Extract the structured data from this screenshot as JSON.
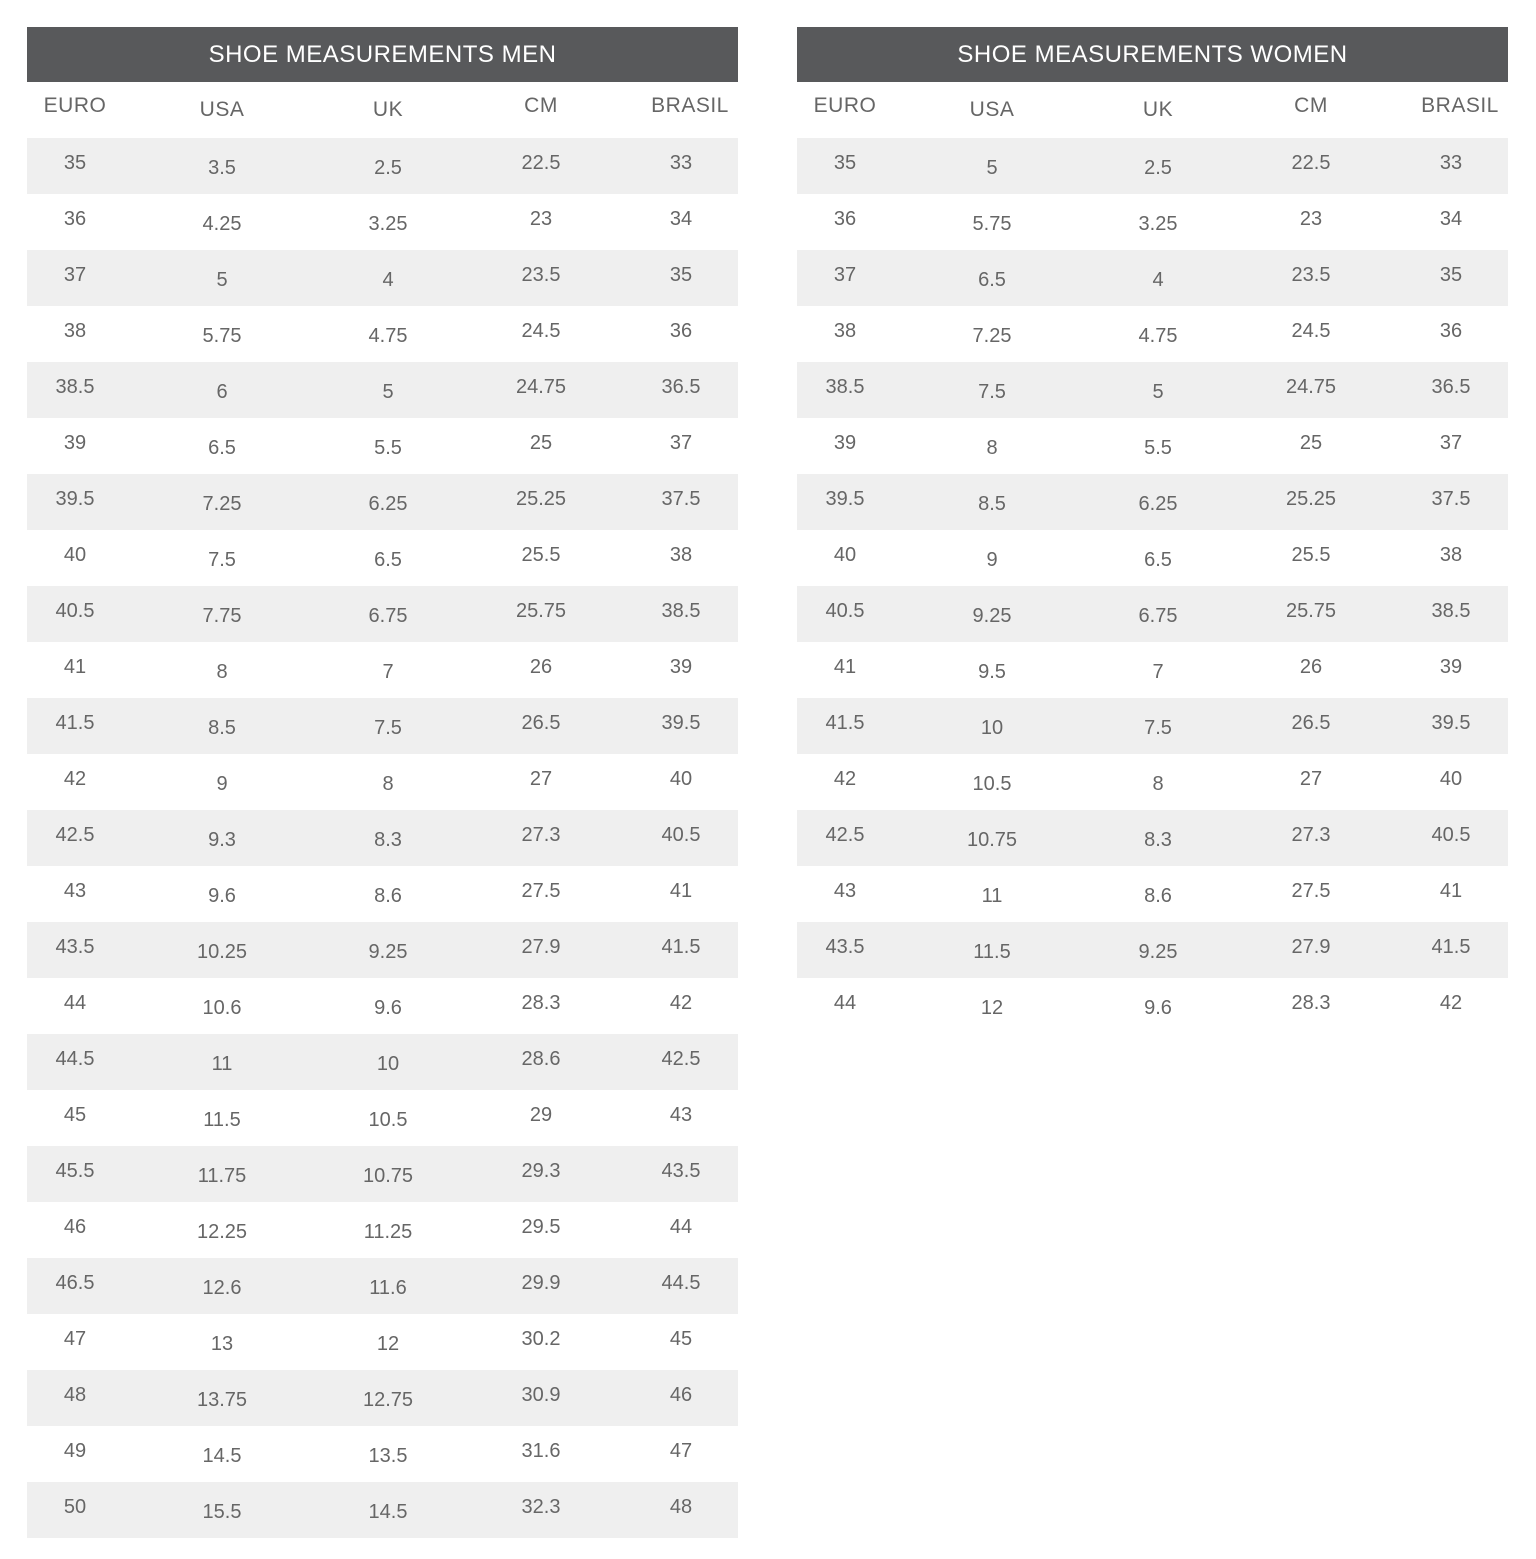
{
  "columns": [
    "EURO",
    "USA",
    "UK",
    "CM",
    "BRASIL"
  ],
  "colors": {
    "title_bg": "#58595b",
    "title_text": "#ffffff",
    "row_shade": "#efefef",
    "text": "#666666"
  },
  "men": {
    "title": "SHOE MEASUREMENTS MEN",
    "rows": [
      [
        "35",
        "3.5",
        "2.5",
        "22.5",
        "33"
      ],
      [
        "36",
        "4.25",
        "3.25",
        "23",
        "34"
      ],
      [
        "37",
        "5",
        "4",
        "23.5",
        "35"
      ],
      [
        "38",
        "5.75",
        "4.75",
        "24.5",
        "36"
      ],
      [
        "38.5",
        "6",
        "5",
        "24.75",
        "36.5"
      ],
      [
        "39",
        "6.5",
        "5.5",
        "25",
        "37"
      ],
      [
        "39.5",
        "7.25",
        "6.25",
        "25.25",
        "37.5"
      ],
      [
        "40",
        "7.5",
        "6.5",
        "25.5",
        "38"
      ],
      [
        "40.5",
        "7.75",
        "6.75",
        "25.75",
        "38.5"
      ],
      [
        "41",
        "8",
        "7",
        "26",
        "39"
      ],
      [
        "41.5",
        "8.5",
        "7.5",
        "26.5",
        "39.5"
      ],
      [
        "42",
        "9",
        "8",
        "27",
        "40"
      ],
      [
        "42.5",
        "9.3",
        "8.3",
        "27.3",
        "40.5"
      ],
      [
        "43",
        "9.6",
        "8.6",
        "27.5",
        "41"
      ],
      [
        "43.5",
        "10.25",
        "9.25",
        "27.9",
        "41.5"
      ],
      [
        "44",
        "10.6",
        "9.6",
        "28.3",
        "42"
      ],
      [
        "44.5",
        "11",
        "10",
        "28.6",
        "42.5"
      ],
      [
        "45",
        "11.5",
        "10.5",
        "29",
        "43"
      ],
      [
        "45.5",
        "11.75",
        "10.75",
        "29.3",
        "43.5"
      ],
      [
        "46",
        "12.25",
        "11.25",
        "29.5",
        "44"
      ],
      [
        "46.5",
        "12.6",
        "11.6",
        "29.9",
        "44.5"
      ],
      [
        "47",
        "13",
        "12",
        "30.2",
        "45"
      ],
      [
        "48",
        "13.75",
        "12.75",
        "30.9",
        "46"
      ],
      [
        "49",
        "14.5",
        "13.5",
        "31.6",
        "47"
      ],
      [
        "50",
        "15.5",
        "14.5",
        "32.3",
        "48"
      ]
    ]
  },
  "women": {
    "title": "SHOE MEASUREMENTS WOMEN",
    "rows": [
      [
        "35",
        "5",
        "2.5",
        "22.5",
        "33"
      ],
      [
        "36",
        "5.75",
        "3.25",
        "23",
        "34"
      ],
      [
        "37",
        "6.5",
        "4",
        "23.5",
        "35"
      ],
      [
        "38",
        "7.25",
        "4.75",
        "24.5",
        "36"
      ],
      [
        "38.5",
        "7.5",
        "5",
        "24.75",
        "36.5"
      ],
      [
        "39",
        "8",
        "5.5",
        "25",
        "37"
      ],
      [
        "39.5",
        "8.5",
        "6.25",
        "25.25",
        "37.5"
      ],
      [
        "40",
        "9",
        "6.5",
        "25.5",
        "38"
      ],
      [
        "40.5",
        "9.25",
        "6.75",
        "25.75",
        "38.5"
      ],
      [
        "41",
        "9.5",
        "7",
        "26",
        "39"
      ],
      [
        "41.5",
        "10",
        "7.5",
        "26.5",
        "39.5"
      ],
      [
        "42",
        "10.5",
        "8",
        "27",
        "40"
      ],
      [
        "42.5",
        "10.75",
        "8.3",
        "27.3",
        "40.5"
      ],
      [
        "43",
        "11",
        "8.6",
        "27.5",
        "41"
      ],
      [
        "43.5",
        "11.5",
        "9.25",
        "27.9",
        "41.5"
      ],
      [
        "44",
        "12",
        "9.6",
        "28.3",
        "42"
      ]
    ]
  }
}
